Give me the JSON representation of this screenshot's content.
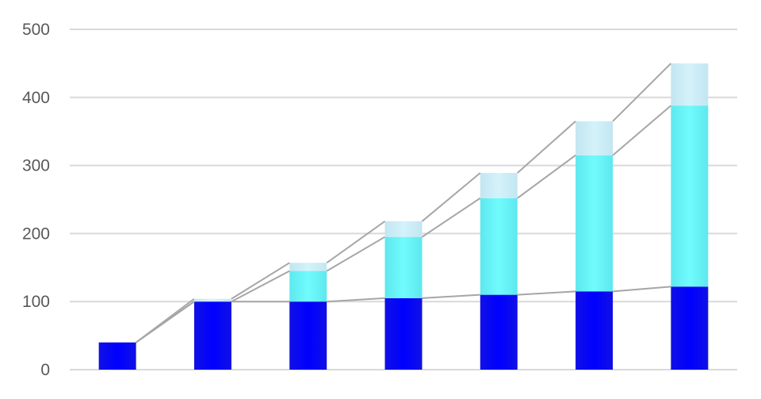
{
  "chart_data": {
    "type": "bar",
    "stacked": true,
    "categories": [
      "",
      "",
      "",
      "",
      "",
      "",
      ""
    ],
    "series": [
      {
        "values": [
          40,
          100,
          100,
          105,
          110,
          115,
          122
        ],
        "color": "#0a0aee"
      },
      {
        "values": [
          0,
          0,
          45,
          90,
          142,
          200,
          266
        ],
        "color": "#66f4f6"
      },
      {
        "values": [
          0,
          4,
          12,
          23,
          37,
          50,
          62
        ],
        "color": "#c8ecf6"
      }
    ],
    "ylim": [
      0,
      500
    ],
    "yticks": [
      "0",
      "100",
      "200",
      "300",
      "400",
      "500"
    ],
    "grid": true,
    "connector_lines": true,
    "connector_color": "#a6a6a6",
    "legend": "none",
    "title": "",
    "xlabel": "",
    "ylabel": ""
  }
}
